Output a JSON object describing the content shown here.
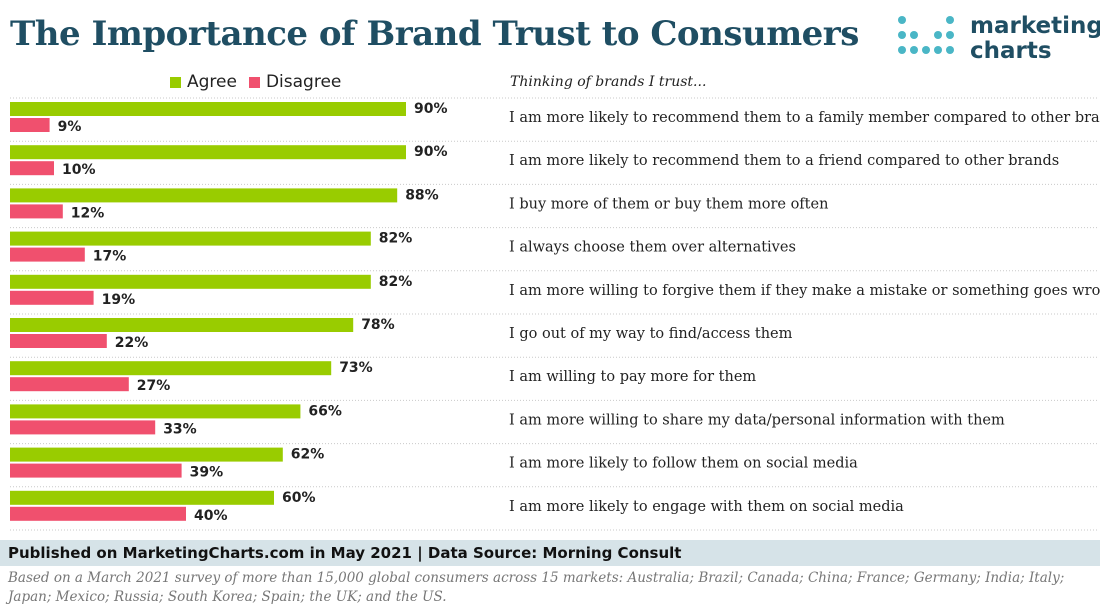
{
  "header": {
    "title": "The Importance of Brand Trust to Consumers",
    "subtitle": "Thinking of brands I trust..."
  },
  "logo": {
    "line1": "marketing",
    "line2": "charts",
    "dot_color": "#4ab6c6",
    "text_color": "#1f4e63"
  },
  "legend": [
    {
      "label": "Agree",
      "color": "#99cc00"
    },
    {
      "label": "Disagree",
      "color": "#f0506e"
    }
  ],
  "chart_data": {
    "type": "bar",
    "orientation": "horizontal",
    "value_suffix": "%",
    "xlim": [
      0,
      100
    ],
    "grid": false,
    "legend_position": "top-left",
    "categories": [
      "I am more likely to recommend them to a family member compared to other brands",
      "I am more likely to recommend them to a friend compared to other brands",
      "I buy more of them or buy them more often",
      "I always choose them over alternatives",
      "I am more willing to forgive them if they make a mistake or something goes wrong",
      "I go out of my way to find/access them",
      "I am willing to pay more for them",
      "I am more willing to share my data/personal information with them",
      "I am more likely to follow them on social media",
      "I am more likely to engage with them on social media"
    ],
    "series": [
      {
        "name": "Agree",
        "color": "#99cc00",
        "values": [
          90,
          90,
          88,
          82,
          82,
          78,
          73,
          66,
          62,
          60
        ]
      },
      {
        "name": "Disagree",
        "color": "#f0506e",
        "values": [
          9,
          10,
          12,
          17,
          19,
          22,
          27,
          33,
          39,
          40
        ]
      }
    ]
  },
  "footer": {
    "published": "Published on MarketingCharts.com in May 2021 | Data Source: Morning Consult",
    "note": "Based on a March 2021 survey of more than 15,000 global consumers across 15 markets: Australia; Brazil; Canada; China; France; Germany; India; Italy; Japan; Mexico; Russia; South Korea; Spain; the UK; and the US."
  }
}
